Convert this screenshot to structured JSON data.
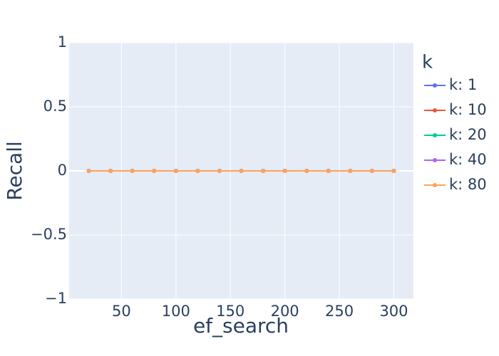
{
  "chart_data": {
    "type": "line",
    "xlabel": "ef_search",
    "ylabel": "Recall",
    "xlim": [
      2,
      318
    ],
    "ylim": [
      -1,
      1
    ],
    "xticks": [
      50,
      100,
      150,
      200,
      250,
      300
    ],
    "xtick_labels": [
      "50",
      "100",
      "150",
      "200",
      "250",
      "300"
    ],
    "yticks": [
      -1,
      -0.5,
      0,
      0.5,
      1
    ],
    "ytick_labels": [
      "−1",
      "−0.5",
      "0",
      "0.5",
      "1"
    ],
    "grid": true,
    "legend_title": "k",
    "legend_position": "right",
    "x": [
      20,
      40,
      60,
      80,
      100,
      120,
      140,
      160,
      180,
      200,
      220,
      240,
      260,
      280,
      300
    ],
    "series": [
      {
        "name": "k: 1",
        "color": "#636efa",
        "values": [
          0,
          0,
          0,
          0,
          0,
          0,
          0,
          0,
          0,
          0,
          0,
          0,
          0,
          0,
          0
        ]
      },
      {
        "name": "k: 10",
        "color": "#EF553B",
        "values": [
          0,
          0,
          0,
          0,
          0,
          0,
          0,
          0,
          0,
          0,
          0,
          0,
          0,
          0,
          0
        ]
      },
      {
        "name": "k: 20",
        "color": "#00cc96",
        "values": [
          0,
          0,
          0,
          0,
          0,
          0,
          0,
          0,
          0,
          0,
          0,
          0,
          0,
          0,
          0
        ]
      },
      {
        "name": "k: 40",
        "color": "#ab63fa",
        "values": [
          0,
          0,
          0,
          0,
          0,
          0,
          0,
          0,
          0,
          0,
          0,
          0,
          0,
          0,
          0
        ]
      },
      {
        "name": "k: 80",
        "color": "#FFA15A",
        "values": [
          0,
          0,
          0,
          0,
          0,
          0,
          0,
          0,
          0,
          0,
          0,
          0,
          0,
          0,
          0
        ]
      }
    ]
  }
}
